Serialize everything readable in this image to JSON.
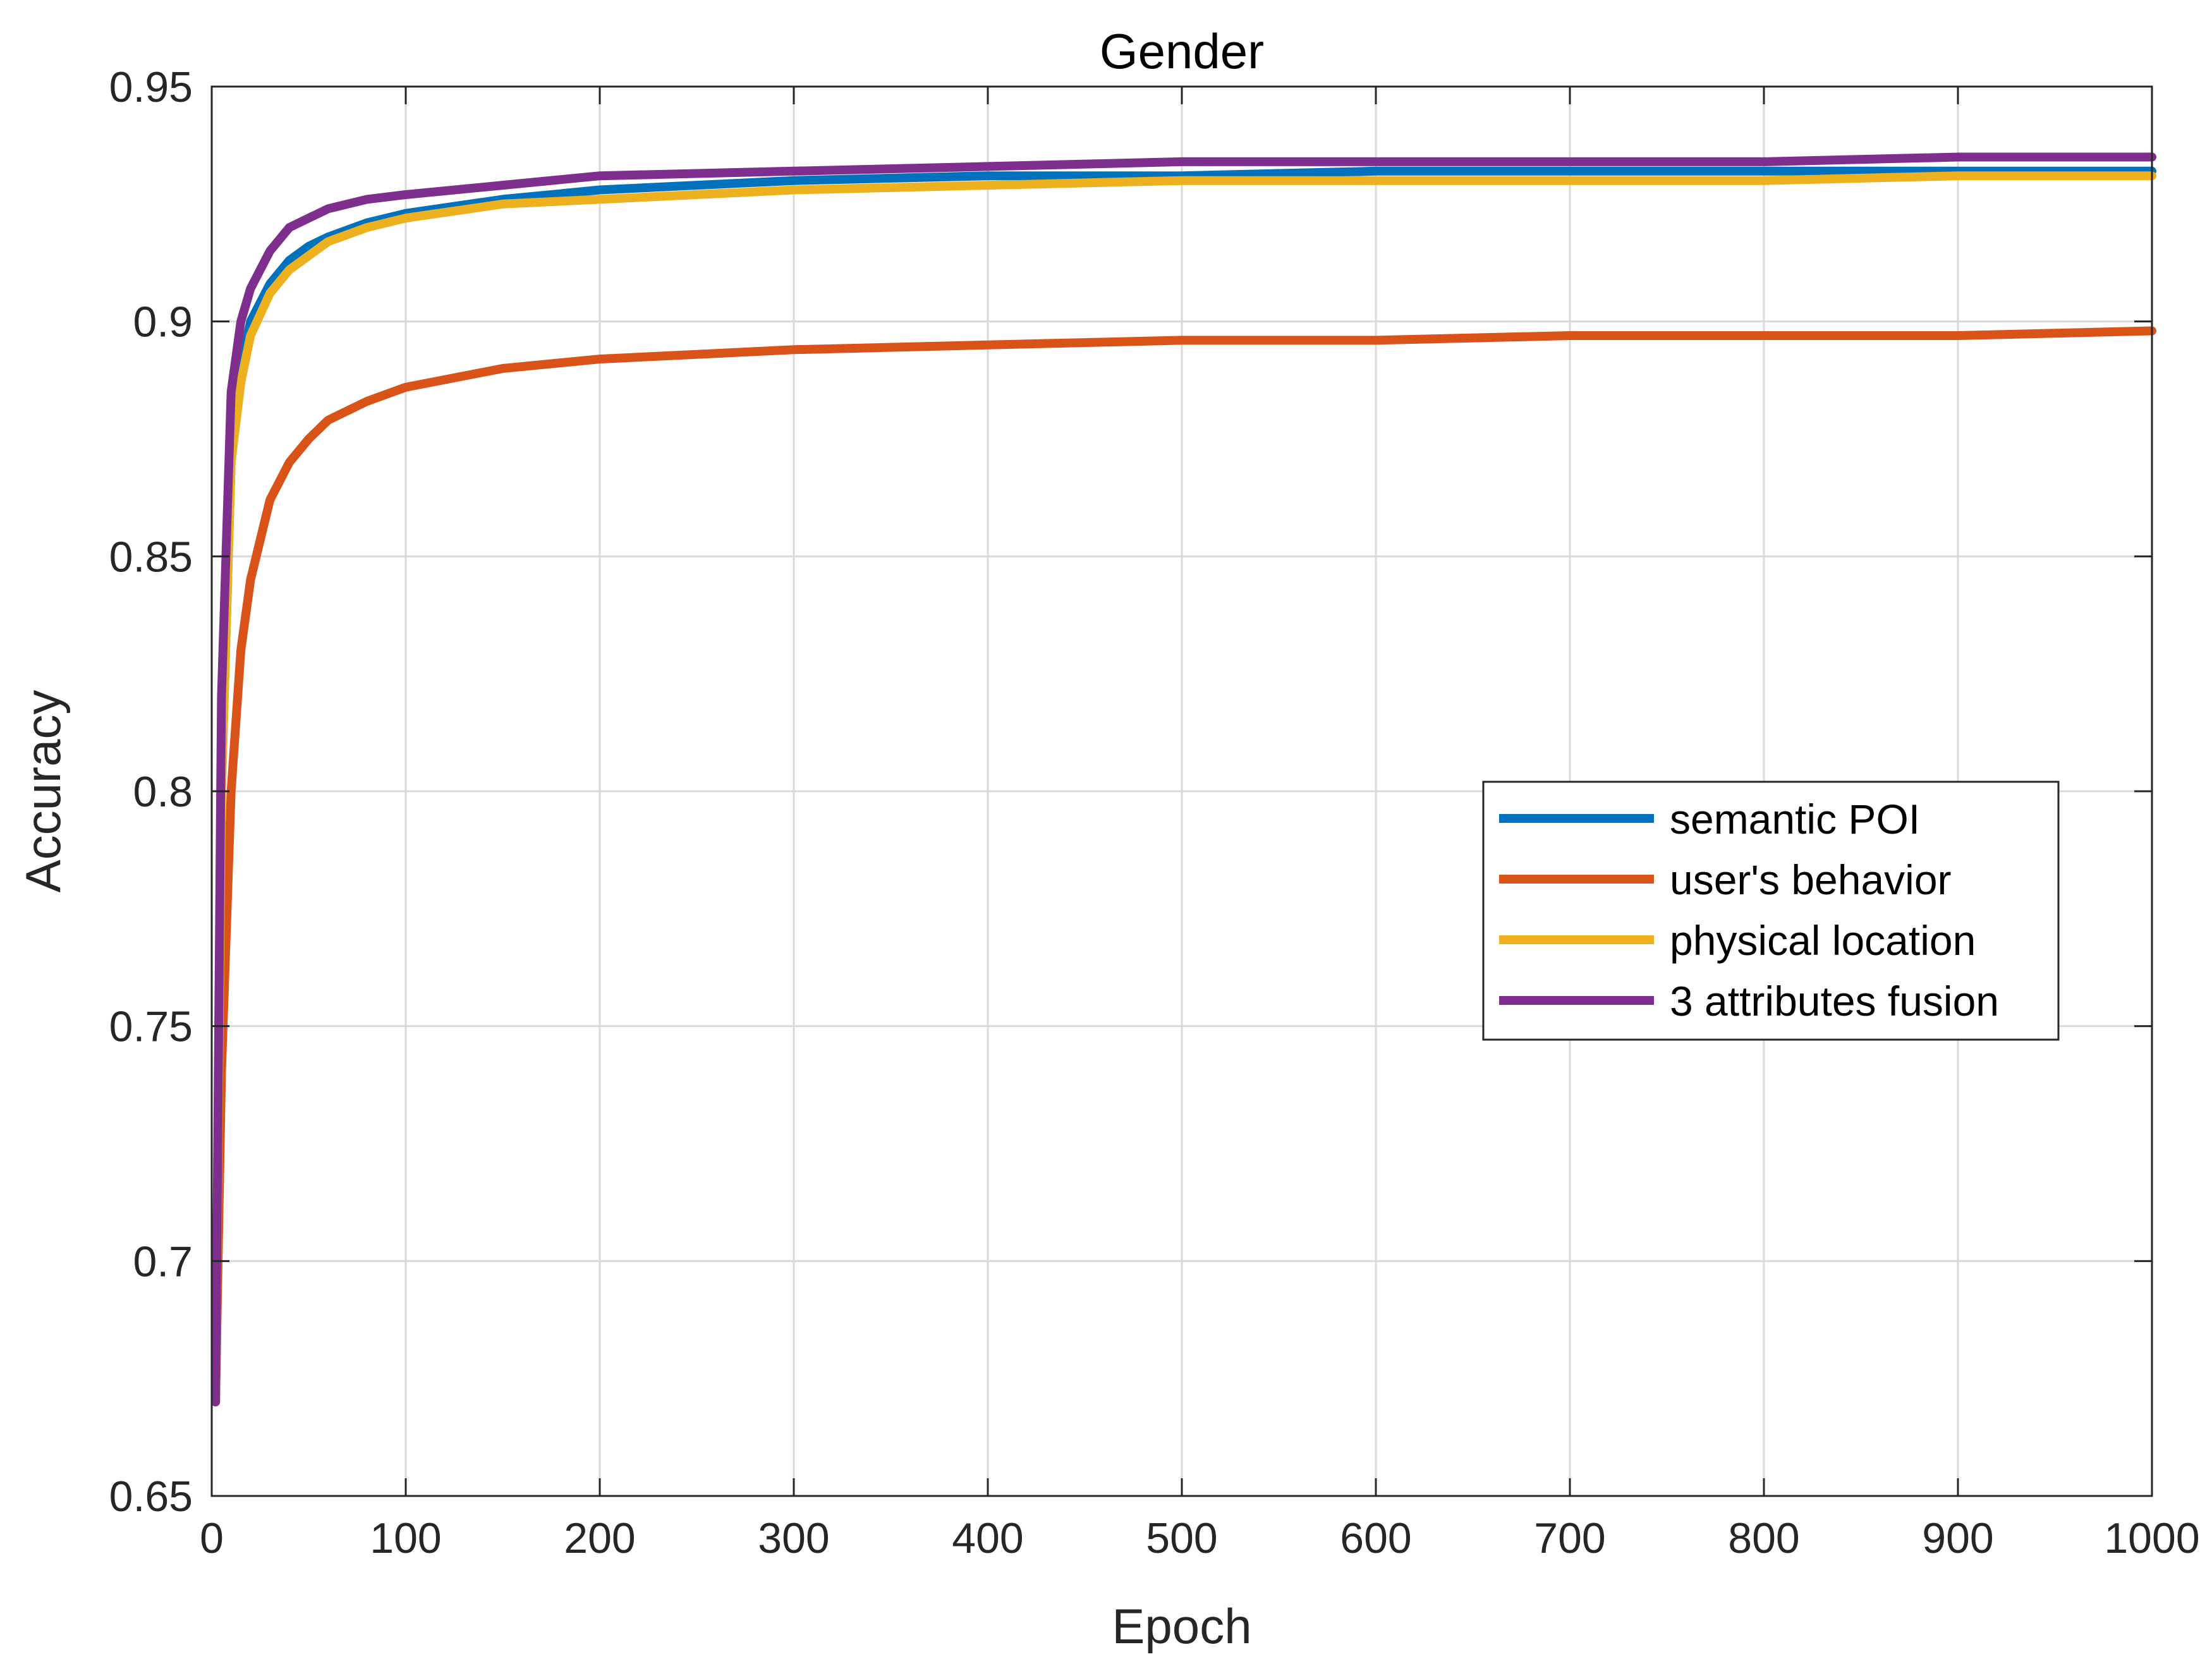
{
  "chart_data": {
    "type": "line",
    "title": "Gender",
    "xlabel": "Epoch",
    "ylabel": "Accuracy",
    "xlim": [
      0,
      1000
    ],
    "ylim": [
      0.65,
      0.95
    ],
    "xticks": [
      "0",
      "100",
      "200",
      "300",
      "400",
      "500",
      "600",
      "700",
      "800",
      "900",
      "1000"
    ],
    "yticks": [
      "0.65",
      "0.7",
      "0.75",
      "0.8",
      "0.85",
      "0.9",
      "0.95"
    ],
    "grid": true,
    "legend_position": "center-right",
    "x": [
      2,
      5,
      10,
      15,
      20,
      30,
      40,
      50,
      60,
      80,
      100,
      150,
      200,
      300,
      400,
      500,
      600,
      700,
      800,
      900,
      1000
    ],
    "series": [
      {
        "name": "semantic POI",
        "color": "#0072BD",
        "values": [
          0.67,
          0.8,
          0.87,
          0.89,
          0.9,
          0.908,
          0.913,
          0.916,
          0.918,
          0.921,
          0.923,
          0.926,
          0.928,
          0.93,
          0.931,
          0.931,
          0.932,
          0.932,
          0.932,
          0.932,
          0.932
        ]
      },
      {
        "name": "user's behavior",
        "color": "#D95319",
        "values": [
          0.67,
          0.74,
          0.8,
          0.83,
          0.845,
          0.862,
          0.87,
          0.875,
          0.879,
          0.883,
          0.886,
          0.89,
          0.892,
          0.894,
          0.895,
          0.896,
          0.896,
          0.897,
          0.897,
          0.897,
          0.898
        ]
      },
      {
        "name": "physical location",
        "color": "#EDB120",
        "values": [
          0.67,
          0.8,
          0.87,
          0.887,
          0.897,
          0.906,
          0.911,
          0.914,
          0.917,
          0.92,
          0.922,
          0.925,
          0.926,
          0.928,
          0.929,
          0.93,
          0.93,
          0.93,
          0.93,
          0.931,
          0.931
        ]
      },
      {
        "name": "3 attributes fusion",
        "color": "#7E2F8E",
        "values": [
          0.67,
          0.82,
          0.885,
          0.9,
          0.907,
          0.915,
          0.92,
          0.922,
          0.924,
          0.926,
          0.927,
          0.929,
          0.931,
          0.932,
          0.933,
          0.934,
          0.934,
          0.934,
          0.934,
          0.935,
          0.935
        ]
      }
    ]
  }
}
